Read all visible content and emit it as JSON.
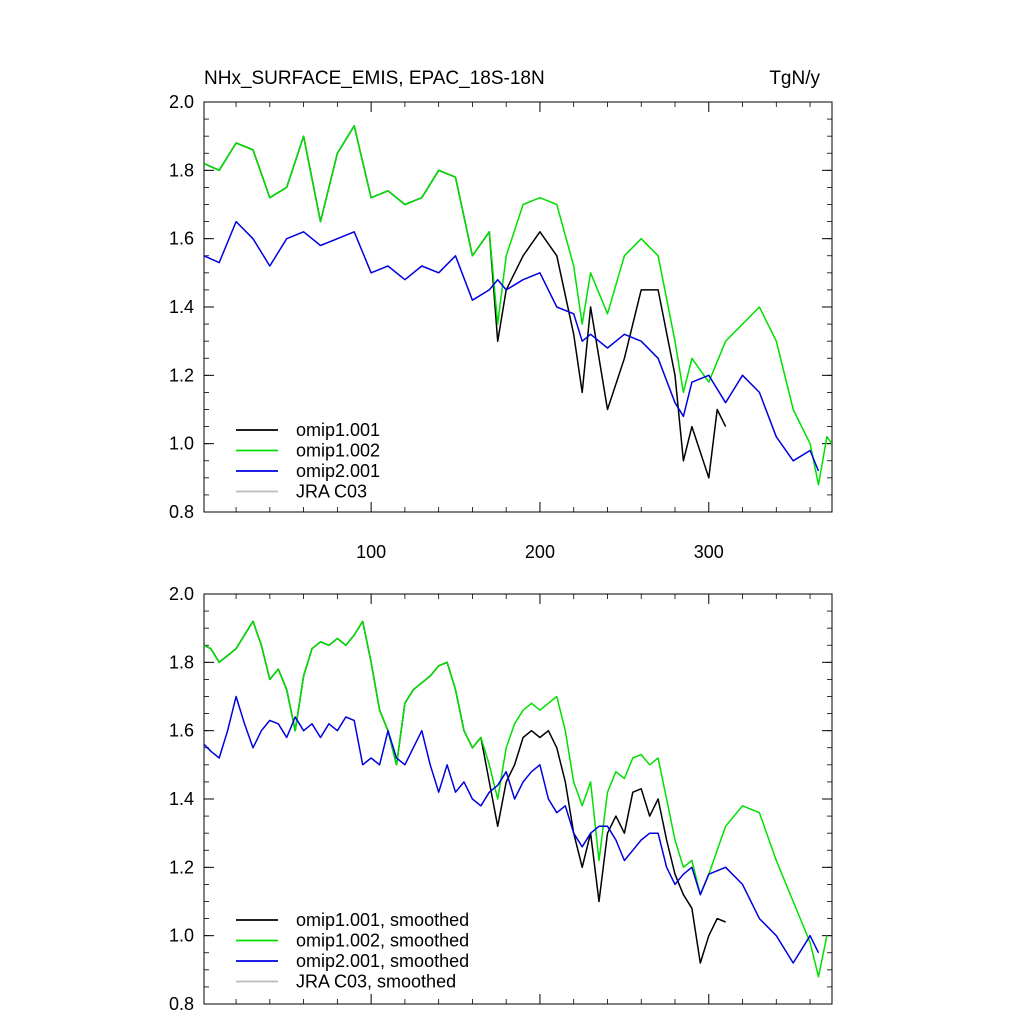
{
  "figure_title": "NHx_SURFACE_EMIS, EPAC_18S-18N",
  "units": "TgN/y",
  "colors": {
    "omip1_001": "#000000",
    "omip1_002": "#00e000",
    "omip2_001": "#0000e0",
    "jra_c03": "#bbbbbb"
  },
  "chart_data": [
    {
      "type": "line",
      "title": "NHx_SURFACE_EMIS, EPAC_18S-18N",
      "units": "TgN/y",
      "xlabel": "",
      "ylabel": "",
      "xlim": [
        1,
        373
      ],
      "ylim": [
        0.8,
        2.0
      ],
      "xticks": [
        100,
        200,
        300
      ],
      "xtick_labels": [
        "100",
        "200",
        "300"
      ],
      "yticks": [
        0.8,
        1.0,
        1.2,
        1.4,
        1.6,
        1.8,
        2.0
      ],
      "ytick_labels": [
        "0.8",
        "1.0",
        "1.2",
        "1.4",
        "1.6",
        "1.8",
        "2.0"
      ],
      "legend_position": "bottom-left",
      "series": [
        {
          "name": "omip1.001",
          "color_key": "omip1_001",
          "x": [
            1,
            10,
            20,
            30,
            40,
            50,
            60,
            70,
            80,
            90,
            100,
            110,
            120,
            130,
            140,
            150,
            160,
            170,
            175,
            180,
            190,
            200,
            210,
            220,
            225,
            230,
            240,
            250,
            260,
            270,
            280,
            285,
            290,
            300,
            305,
            310
          ],
          "y": [
            1.82,
            1.8,
            1.88,
            1.86,
            1.72,
            1.75,
            1.9,
            1.65,
            1.85,
            1.93,
            1.72,
            1.74,
            1.7,
            1.72,
            1.8,
            1.78,
            1.55,
            1.62,
            1.3,
            1.45,
            1.55,
            1.62,
            1.55,
            1.32,
            1.15,
            1.4,
            1.1,
            1.25,
            1.45,
            1.45,
            1.2,
            0.95,
            1.05,
            0.9,
            1.1,
            1.05
          ]
        },
        {
          "name": "omip1.002",
          "color_key": "omip1_002",
          "x": [
            1,
            10,
            20,
            30,
            40,
            50,
            60,
            70,
            80,
            90,
            100,
            110,
            120,
            130,
            140,
            150,
            160,
            170,
            175,
            180,
            190,
            200,
            210,
            220,
            225,
            230,
            240,
            250,
            260,
            270,
            280,
            285,
            290,
            300,
            310,
            320,
            330,
            340,
            350,
            360,
            365,
            370,
            373
          ],
          "y": [
            1.82,
            1.8,
            1.88,
            1.86,
            1.72,
            1.75,
            1.9,
            1.65,
            1.85,
            1.93,
            1.72,
            1.74,
            1.7,
            1.72,
            1.8,
            1.78,
            1.55,
            1.62,
            1.35,
            1.55,
            1.7,
            1.72,
            1.7,
            1.52,
            1.35,
            1.5,
            1.38,
            1.55,
            1.6,
            1.55,
            1.3,
            1.15,
            1.25,
            1.18,
            1.3,
            1.35,
            1.4,
            1.3,
            1.1,
            1.0,
            0.88,
            1.02,
            1.0
          ]
        },
        {
          "name": "omip2.001",
          "color_key": "omip2_001",
          "x": [
            1,
            10,
            20,
            30,
            40,
            50,
            60,
            70,
            80,
            90,
            100,
            110,
            120,
            130,
            140,
            150,
            160,
            170,
            175,
            180,
            190,
            200,
            210,
            220,
            225,
            230,
            240,
            250,
            260,
            270,
            280,
            285,
            290,
            300,
            310,
            320,
            330,
            340,
            350,
            360,
            365
          ],
          "y": [
            1.55,
            1.53,
            1.65,
            1.6,
            1.52,
            1.6,
            1.62,
            1.58,
            1.6,
            1.62,
            1.5,
            1.52,
            1.48,
            1.52,
            1.5,
            1.55,
            1.42,
            1.45,
            1.48,
            1.45,
            1.48,
            1.5,
            1.4,
            1.38,
            1.3,
            1.32,
            1.28,
            1.32,
            1.3,
            1.25,
            1.12,
            1.08,
            1.18,
            1.2,
            1.12,
            1.2,
            1.15,
            1.02,
            0.95,
            0.98,
            0.92
          ]
        },
        {
          "name": "JRA C03",
          "color_key": "jra_c03",
          "x": [],
          "y": []
        }
      ]
    },
    {
      "type": "line",
      "title": "",
      "xlabel": "",
      "ylabel": "",
      "xlim": [
        1,
        373
      ],
      "ylim": [
        0.8,
        2.0
      ],
      "xticks": [
        100,
        200,
        300
      ],
      "xtick_labels": [],
      "yticks": [
        0.8,
        1.0,
        1.2,
        1.4,
        1.6,
        1.8,
        2.0
      ],
      "ytick_labels": [
        "0.8",
        "1.0",
        "1.2",
        "1.4",
        "1.6",
        "1.8",
        "2.0"
      ],
      "legend_position": "bottom-left",
      "series": [
        {
          "name": "omip1.001, smoothed",
          "color_key": "omip1_001",
          "x": [
            1,
            5,
            10,
            15,
            20,
            25,
            30,
            35,
            40,
            45,
            50,
            55,
            60,
            65,
            70,
            75,
            80,
            85,
            90,
            95,
            100,
            105,
            110,
            115,
            120,
            125,
            130,
            135,
            140,
            145,
            150,
            155,
            160,
            165,
            170,
            175,
            180,
            185,
            190,
            195,
            200,
            205,
            210,
            215,
            220,
            225,
            230,
            235,
            240,
            245,
            250,
            255,
            260,
            265,
            270,
            275,
            280,
            285,
            290,
            295,
            300,
            305,
            310
          ],
          "y": [
            1.85,
            1.84,
            1.8,
            1.82,
            1.84,
            1.88,
            1.92,
            1.85,
            1.75,
            1.78,
            1.72,
            1.6,
            1.76,
            1.84,
            1.86,
            1.85,
            1.87,
            1.85,
            1.88,
            1.92,
            1.8,
            1.66,
            1.6,
            1.5,
            1.68,
            1.72,
            1.74,
            1.76,
            1.79,
            1.8,
            1.72,
            1.6,
            1.55,
            1.58,
            1.45,
            1.32,
            1.45,
            1.5,
            1.58,
            1.6,
            1.58,
            1.6,
            1.55,
            1.45,
            1.3,
            1.2,
            1.3,
            1.1,
            1.3,
            1.35,
            1.3,
            1.42,
            1.43,
            1.35,
            1.4,
            1.28,
            1.18,
            1.12,
            1.08,
            0.92,
            1.0,
            1.05,
            1.04
          ]
        },
        {
          "name": "omip1.002, smoothed",
          "color_key": "omip1_002",
          "x": [
            1,
            5,
            10,
            15,
            20,
            25,
            30,
            35,
            40,
            45,
            50,
            55,
            60,
            65,
            70,
            75,
            80,
            85,
            90,
            95,
            100,
            105,
            110,
            115,
            120,
            125,
            130,
            135,
            140,
            145,
            150,
            155,
            160,
            165,
            170,
            175,
            180,
            185,
            190,
            195,
            200,
            205,
            210,
            215,
            220,
            225,
            230,
            235,
            240,
            245,
            250,
            255,
            260,
            265,
            270,
            275,
            280,
            285,
            290,
            295,
            300,
            310,
            320,
            330,
            340,
            350,
            360,
            365,
            370
          ],
          "y": [
            1.85,
            1.84,
            1.8,
            1.82,
            1.84,
            1.88,
            1.92,
            1.85,
            1.75,
            1.78,
            1.72,
            1.6,
            1.76,
            1.84,
            1.86,
            1.85,
            1.87,
            1.85,
            1.88,
            1.92,
            1.8,
            1.66,
            1.6,
            1.5,
            1.68,
            1.72,
            1.74,
            1.76,
            1.79,
            1.8,
            1.72,
            1.6,
            1.55,
            1.58,
            1.5,
            1.4,
            1.55,
            1.62,
            1.66,
            1.68,
            1.66,
            1.68,
            1.7,
            1.6,
            1.45,
            1.38,
            1.45,
            1.22,
            1.42,
            1.48,
            1.46,
            1.52,
            1.53,
            1.5,
            1.52,
            1.4,
            1.28,
            1.2,
            1.22,
            1.12,
            1.18,
            1.32,
            1.38,
            1.36,
            1.22,
            1.1,
            0.98,
            0.88,
            1.0
          ]
        },
        {
          "name": "omip2.001, smoothed",
          "color_key": "omip2_001",
          "x": [
            1,
            5,
            10,
            15,
            20,
            25,
            30,
            35,
            40,
            45,
            50,
            55,
            60,
            65,
            70,
            75,
            80,
            85,
            90,
            95,
            100,
            105,
            110,
            115,
            120,
            125,
            130,
            135,
            140,
            145,
            150,
            155,
            160,
            165,
            170,
            175,
            180,
            185,
            190,
            195,
            200,
            205,
            210,
            215,
            220,
            225,
            230,
            235,
            240,
            245,
            250,
            255,
            260,
            265,
            270,
            275,
            280,
            285,
            290,
            295,
            300,
            310,
            320,
            330,
            340,
            350,
            360,
            365
          ],
          "y": [
            1.56,
            1.54,
            1.52,
            1.6,
            1.7,
            1.62,
            1.55,
            1.6,
            1.63,
            1.62,
            1.58,
            1.64,
            1.6,
            1.62,
            1.58,
            1.62,
            1.6,
            1.64,
            1.63,
            1.5,
            1.52,
            1.5,
            1.6,
            1.52,
            1.5,
            1.55,
            1.6,
            1.5,
            1.42,
            1.5,
            1.42,
            1.45,
            1.4,
            1.38,
            1.42,
            1.44,
            1.48,
            1.4,
            1.45,
            1.48,
            1.5,
            1.4,
            1.36,
            1.38,
            1.3,
            1.26,
            1.3,
            1.32,
            1.32,
            1.28,
            1.22,
            1.25,
            1.28,
            1.3,
            1.3,
            1.2,
            1.15,
            1.18,
            1.2,
            1.12,
            1.18,
            1.2,
            1.15,
            1.05,
            1.0,
            0.92,
            1.0,
            0.95
          ]
        },
        {
          "name": "JRA C03, smoothed",
          "color_key": "jra_c03",
          "x": [],
          "y": []
        }
      ]
    }
  ]
}
